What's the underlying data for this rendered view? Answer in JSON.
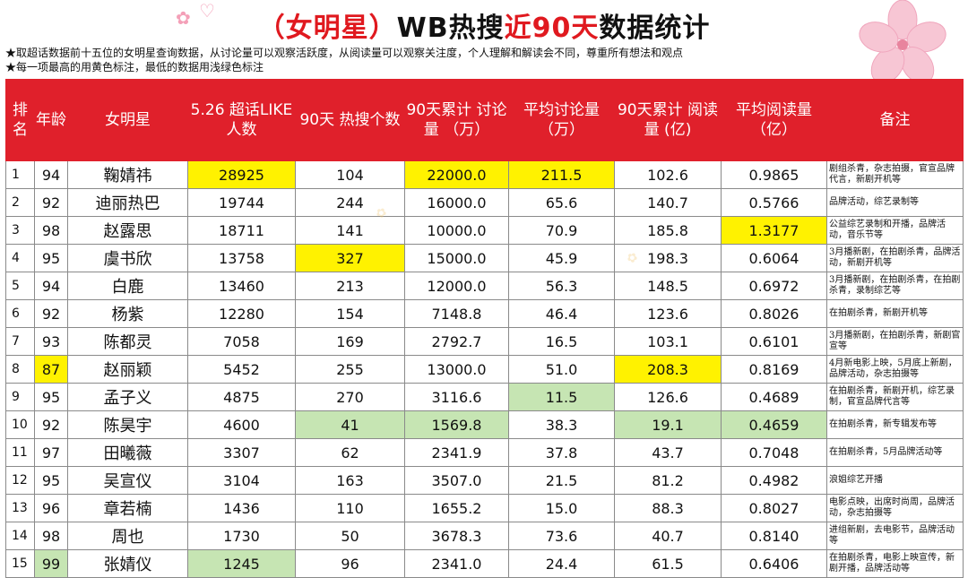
{
  "header": {
    "title_prefix": "（女明星）",
    "title_main": "WB热搜",
    "title_red": "近90天",
    "title_suffix": "数据统计",
    "notes": [
      "★取超话数据前十五位的女明星查询数据，从讨论量可以观察活跃度，从阅读量可以观察关注度，个人理解和解读会不同，尊重所有想法和观点",
      "★每一项最高的用黄色标注，最低的数据用浅绿色标注"
    ]
  },
  "columns": [
    "排名",
    "年龄",
    "女明星",
    "5.26 超话LIKE 人数",
    "90天 热搜个数",
    "90天累计 讨论量 （万）",
    "平均讨论量 （万）",
    "90天累计 阅读量 (亿)",
    "平均阅读量 （亿）",
    "备注"
  ],
  "colors": {
    "header_bg": "#e0202b",
    "highest": "#fff200",
    "lowest": "#c6e5b3"
  },
  "rows": [
    {
      "rank": "1",
      "age": "94",
      "name": "鞠婧祎",
      "like": "28925",
      "hot": "104",
      "disc": "22000.0",
      "avgdisc": "211.5",
      "read": "102.6",
      "avgread": "0.9865",
      "note": "剧组杀青，杂志拍摄，官宣品牌代言，新剧开机等"
    },
    {
      "rank": "2",
      "age": "92",
      "name": "迪丽热巴",
      "like": "19744",
      "hot": "244",
      "disc": "16000.0",
      "avgdisc": "65.6",
      "read": "140.7",
      "avgread": "0.5766",
      "note": "品牌活动，综艺录制等"
    },
    {
      "rank": "3",
      "age": "98",
      "name": "赵露思",
      "like": "18711",
      "hot": "141",
      "disc": "10000.0",
      "avgdisc": "70.9",
      "read": "185.8",
      "avgread": "1.3177",
      "note": "公益综艺录制和开播，品牌活动，音乐节等"
    },
    {
      "rank": "4",
      "age": "95",
      "name": "虞书欣",
      "like": "13758",
      "hot": "327",
      "disc": "15000.0",
      "avgdisc": "45.9",
      "read": "198.3",
      "avgread": "0.6064",
      "note": "3月播新剧，在拍剧杀青，品牌活动，新剧开机等"
    },
    {
      "rank": "5",
      "age": "94",
      "name": "白鹿",
      "like": "13460",
      "hot": "213",
      "disc": "12000.0",
      "avgdisc": "56.3",
      "read": "148.5",
      "avgread": "0.6972",
      "note": "3月播新剧，在拍剧杀青，在拍剧杀青，录制综艺等"
    },
    {
      "rank": "6",
      "age": "92",
      "name": "杨紫",
      "like": "12280",
      "hot": "154",
      "disc": "7148.8",
      "avgdisc": "46.4",
      "read": "123.6",
      "avgread": "0.8026",
      "note": "在拍剧杀青，新剧开机等"
    },
    {
      "rank": "7",
      "age": "93",
      "name": "陈都灵",
      "like": "7058",
      "hot": "169",
      "disc": "2792.7",
      "avgdisc": "16.5",
      "read": "103.1",
      "avgread": "0.6101",
      "note": "3月播新剧，在拍剧杀青，新剧官宣等"
    },
    {
      "rank": "8",
      "age": "87",
      "name": "赵丽颖",
      "like": "5452",
      "hot": "255",
      "disc": "13000.0",
      "avgdisc": "51.0",
      "read": "208.3",
      "avgread": "0.8169",
      "note": "4月新电影上映，5月底上新剧，品牌活动，杂志拍摄等"
    },
    {
      "rank": "9",
      "age": "95",
      "name": "孟子义",
      "like": "4875",
      "hot": "270",
      "disc": "3116.6",
      "avgdisc": "11.5",
      "read": "126.6",
      "avgread": "0.4689",
      "note": "在拍剧杀青，新剧开机，综艺录制，官宣品牌代言等"
    },
    {
      "rank": "10",
      "age": "92",
      "name": "陈昊宇",
      "like": "4600",
      "hot": "41",
      "disc": "1569.8",
      "avgdisc": "38.3",
      "read": "19.1",
      "avgread": "0.4659",
      "note": "在拍剧杀青，新专辑发布等"
    },
    {
      "rank": "11",
      "age": "97",
      "name": "田曦薇",
      "like": "3307",
      "hot": "62",
      "disc": "2341.9",
      "avgdisc": "37.8",
      "read": "43.7",
      "avgread": "0.7048",
      "note": "在拍剧杀青，5月品牌活动等"
    },
    {
      "rank": "12",
      "age": "95",
      "name": "吴宣仪",
      "like": "3104",
      "hot": "163",
      "disc": "3507.0",
      "avgdisc": "21.5",
      "read": "81.2",
      "avgread": "0.4982",
      "note": "浪姐综艺开播"
    },
    {
      "rank": "13",
      "age": "96",
      "name": "章若楠",
      "like": "1436",
      "hot": "110",
      "disc": "1655.2",
      "avgdisc": "15.0",
      "read": "88.3",
      "avgread": "0.8027",
      "note": "电影点映，出席时尚周，品牌活动，杂志拍摄等"
    },
    {
      "rank": "14",
      "age": "98",
      "name": "周也",
      "like": "1730",
      "hot": "50",
      "disc": "3678.3",
      "avgdisc": "73.6",
      "read": "40.7",
      "avgread": "0.8140",
      "note": "进组新剧，去电影节，品牌活动等"
    },
    {
      "rank": "15",
      "age": "99",
      "name": "张婧仪",
      "like": "1245",
      "hot": "96",
      "disc": "2341.0",
      "avgdisc": "24.4",
      "read": "61.5",
      "avgread": "0.6406",
      "note": "在拍剧杀青，电影上映宣传，新剧开播，品牌活动等"
    }
  ],
  "highlights": {
    "yellow": [
      [
        0,
        "like"
      ],
      [
        0,
        "disc"
      ],
      [
        0,
        "avgdisc"
      ],
      [
        2,
        "avgread"
      ],
      [
        3,
        "hot"
      ],
      [
        7,
        "age"
      ],
      [
        7,
        "read"
      ]
    ],
    "green": [
      [
        8,
        "avgdisc"
      ],
      [
        9,
        "hot"
      ],
      [
        9,
        "disc"
      ],
      [
        9,
        "read"
      ],
      [
        9,
        "avgread"
      ],
      [
        14,
        "age"
      ],
      [
        14,
        "like"
      ]
    ]
  }
}
